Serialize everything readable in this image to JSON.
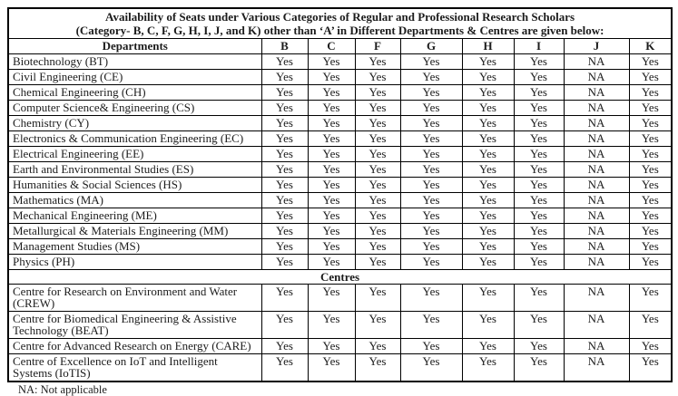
{
  "title": {
    "line1": "Availability of Seats under Various Categories of Regular and Professional Research Scholars",
    "line2": "(Category- B, C, F, G, H, I, J, and K) other than ‘A’ in Different Departments & Centres are given below:"
  },
  "table": {
    "first_column_header": "Departments",
    "category_headers": [
      "B",
      "C",
      "F",
      "G",
      "H",
      "I",
      "J",
      "K"
    ],
    "departments": [
      {
        "name": "Biotechnology (BT)",
        "values": [
          "Yes",
          "Yes",
          "Yes",
          "Yes",
          "Yes",
          "Yes",
          "NA",
          "Yes"
        ]
      },
      {
        "name": "Civil Engineering (CE)",
        "values": [
          "Yes",
          "Yes",
          "Yes",
          "Yes",
          "Yes",
          "Yes",
          "NA",
          "Yes"
        ]
      },
      {
        "name": "Chemical Engineering (CH)",
        "values": [
          "Yes",
          "Yes",
          "Yes",
          "Yes",
          "Yes",
          "Yes",
          "NA",
          "Yes"
        ]
      },
      {
        "name": "Computer Science& Engineering (CS)",
        "values": [
          "Yes",
          "Yes",
          "Yes",
          "Yes",
          "Yes",
          "Yes",
          "NA",
          "Yes"
        ]
      },
      {
        "name": "Chemistry (CY)",
        "values": [
          "Yes",
          "Yes",
          "Yes",
          "Yes",
          "Yes",
          "Yes",
          "NA",
          "Yes"
        ]
      },
      {
        "name": "Electronics & Communication Engineering (EC)",
        "values": [
          "Yes",
          "Yes",
          "Yes",
          "Yes",
          "Yes",
          "Yes",
          "NA",
          "Yes"
        ]
      },
      {
        "name": "Electrical Engineering (EE)",
        "values": [
          "Yes",
          "Yes",
          "Yes",
          "Yes",
          "Yes",
          "Yes",
          "NA",
          "Yes"
        ]
      },
      {
        "name": "Earth and Environmental Studies (ES)",
        "values": [
          "Yes",
          "Yes",
          "Yes",
          "Yes",
          "Yes",
          "Yes",
          "NA",
          "Yes"
        ]
      },
      {
        "name": "Humanities & Social Sciences (HS)",
        "values": [
          "Yes",
          "Yes",
          "Yes",
          "Yes",
          "Yes",
          "Yes",
          "NA",
          "Yes"
        ]
      },
      {
        "name": "Mathematics (MA)",
        "values": [
          "Yes",
          "Yes",
          "Yes",
          "Yes",
          "Yes",
          "Yes",
          "NA",
          "Yes"
        ]
      },
      {
        "name": "Mechanical Engineering (ME)",
        "values": [
          "Yes",
          "Yes",
          "Yes",
          "Yes",
          "Yes",
          "Yes",
          "NA",
          "Yes"
        ]
      },
      {
        "name": "Metallurgical & Materials Engineering (MM)",
        "values": [
          "Yes",
          "Yes",
          "Yes",
          "Yes",
          "Yes",
          "Yes",
          "NA",
          "Yes"
        ]
      },
      {
        "name": "Management Studies (MS)",
        "values": [
          "Yes",
          "Yes",
          "Yes",
          "Yes",
          "Yes",
          "Yes",
          "NA",
          "Yes"
        ]
      },
      {
        "name": "Physics (PH)",
        "values": [
          "Yes",
          "Yes",
          "Yes",
          "Yes",
          "Yes",
          "Yes",
          "NA",
          "Yes"
        ]
      }
    ],
    "centres_section_label": "Centres",
    "centres": [
      {
        "name": "Centre for Research on Environment and Water (CREW)",
        "values": [
          "Yes",
          "Yes",
          "Yes",
          "Yes",
          "Yes",
          "Yes",
          "NA",
          "Yes"
        ]
      },
      {
        "name": "Centre for Biomedical Engineering & Assistive Technology (BEAT)",
        "values": [
          "Yes",
          "Yes",
          "Yes",
          "Yes",
          "Yes",
          "Yes",
          "NA",
          "Yes"
        ]
      },
      {
        "name": "Centre for Advanced Research on Energy (CARE)",
        "values": [
          "Yes",
          "Yes",
          "Yes",
          "Yes",
          "Yes",
          "Yes",
          "NA",
          "Yes"
        ]
      },
      {
        "name": "Centre of Excellence on IoT and Intelligent Systems (IoTIS)",
        "values": [
          "Yes",
          "Yes",
          "Yes",
          "Yes",
          "Yes",
          "Yes",
          "NA",
          "Yes"
        ]
      }
    ]
  },
  "footnote": "NA: Not applicable"
}
